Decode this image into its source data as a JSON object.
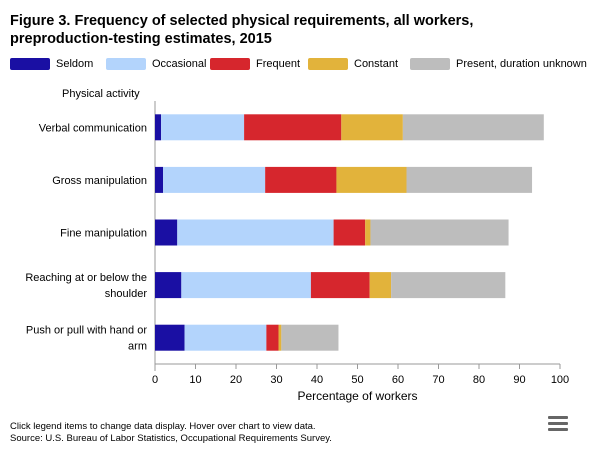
{
  "header": {
    "title_line1": "Figure 3. Frequency of selected physical requirements, all workers,",
    "title_line2": "preproduction-testing estimates, 2015"
  },
  "chart_data": {
    "type": "bar",
    "orientation": "horizontal",
    "stacked": true,
    "category_axis_title": "Physical activity",
    "xlabel": "Percentage of workers",
    "xlim": [
      0,
      100
    ],
    "xticks": [
      "0",
      "10",
      "20",
      "30",
      "40",
      "50",
      "60",
      "70",
      "80",
      "90",
      "100"
    ],
    "categories": [
      [
        "Verbal communication"
      ],
      [
        "Gross manipulation"
      ],
      [
        "Fine manipulation"
      ],
      [
        "Reaching at or below the",
        "shoulder"
      ],
      [
        "Push or pull with hand or",
        "arm"
      ]
    ],
    "series": [
      {
        "name": "Seldom",
        "color": "#1a0fa3",
        "values": [
          1.5,
          2.0,
          5.5,
          6.5,
          7.3
        ]
      },
      {
        "name": "Occasional",
        "color": "#b3d4fc",
        "values": [
          20.5,
          25.2,
          38.6,
          32.0,
          20.2
        ]
      },
      {
        "name": "Frequent",
        "color": "#d6262d",
        "values": [
          24.0,
          17.6,
          7.8,
          14.5,
          3.0
        ]
      },
      {
        "name": "Constant",
        "color": "#e2b33b",
        "values": [
          15.2,
          17.3,
          1.3,
          5.3,
          0.7
        ]
      },
      {
        "name": "Present, duration unknown",
        "color": "#bdbdbd",
        "values": [
          34.8,
          31.0,
          34.1,
          28.2,
          14.1
        ]
      }
    ],
    "legend_position": "top"
  },
  "footer": {
    "line1": "Click legend items to change data display. Hover over chart to view data.",
    "line2": "Source: U.S. Bureau of Labor Statistics, Occupational Requirements Survey."
  },
  "icons": {
    "menu": "hamburger-menu-icon"
  }
}
